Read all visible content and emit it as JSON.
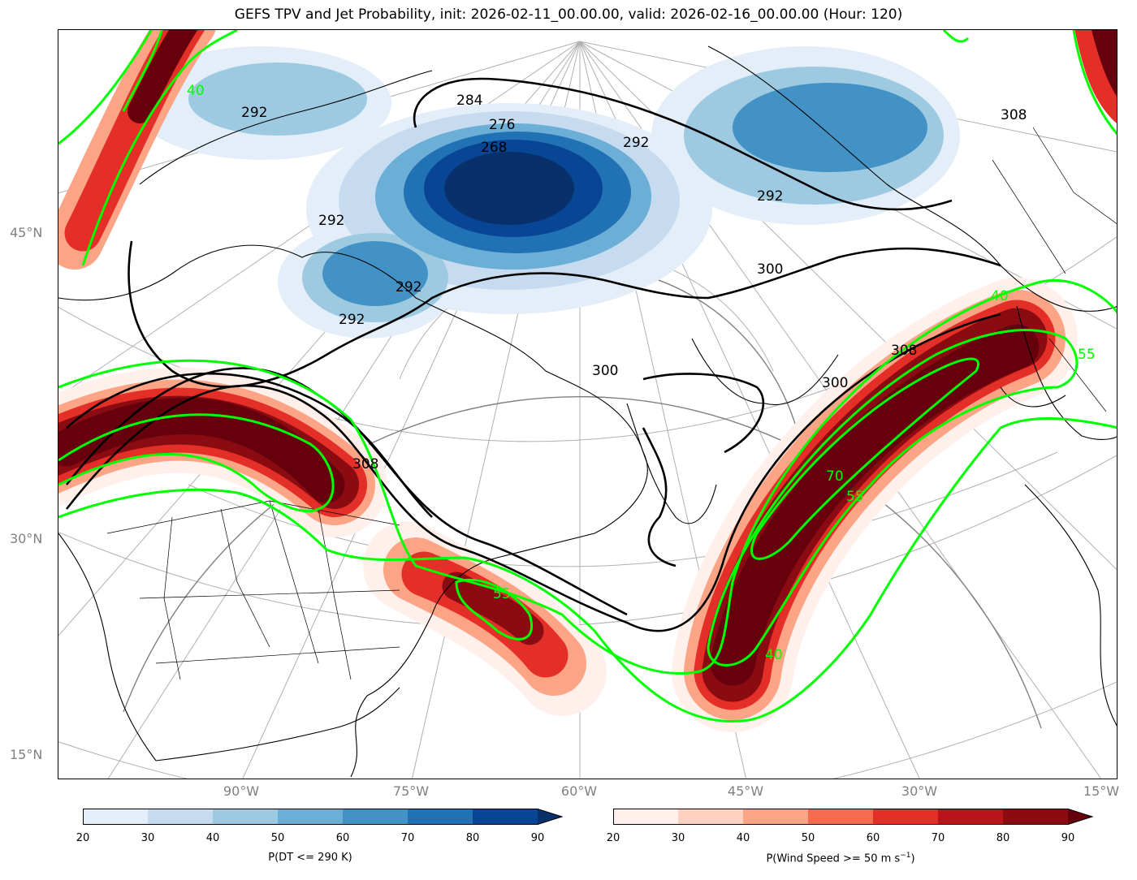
{
  "title": "GEFS TPV and Jet Probability, init: 2026-02-11_00.00.00, valid: 2026-02-16_00.00.00 (Hour: 120)",
  "lat_labels": [
    "45°N",
    "30°N",
    "15°N"
  ],
  "lon_labels": [
    "90°W",
    "75°W",
    "60°W",
    "45°W",
    "30°W",
    "15°W"
  ],
  "theta_labels": [
    "284",
    "276",
    "268",
    "292",
    "300",
    "308"
  ],
  "wind_labels": [
    "40",
    "55",
    "70"
  ],
  "colorbar_tpv": {
    "ticks": [
      "20",
      "30",
      "40",
      "50",
      "60",
      "70",
      "80",
      "90"
    ],
    "label": "P(DT <= 290 K)",
    "colors": [
      "#e3eef9",
      "#c6dbef",
      "#9ecae1",
      "#6baed6",
      "#4292c6",
      "#2171b5",
      "#084594"
    ],
    "extend_color": "#08306b"
  },
  "colorbar_jet": {
    "ticks": [
      "20",
      "30",
      "40",
      "50",
      "60",
      "70",
      "80",
      "90"
    ],
    "label_main": "P(Wind Speed >= 50 m s",
    "label_sup": "−1",
    "label_end": ")",
    "colors": [
      "#fff0eb",
      "#fdd0c0",
      "#fca486",
      "#f66b4d",
      "#e32f27",
      "#b81419",
      "#8a0b12"
    ],
    "extend_color": "#67000d"
  },
  "colors": {
    "wind_contour": "#00ff00",
    "theta_contour": "#000000",
    "graticule": "#b0b0b0",
    "axis_label": "#808080"
  }
}
